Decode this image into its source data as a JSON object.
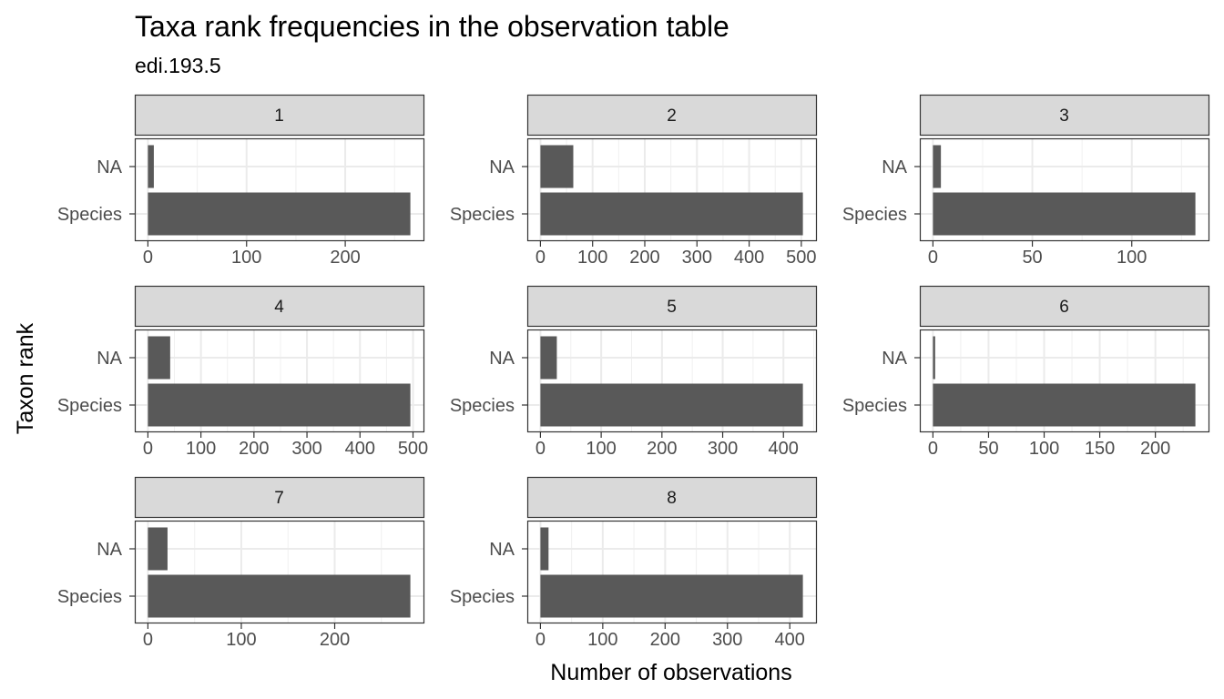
{
  "chart_data": {
    "type": "bar",
    "orientation": "horizontal",
    "title": "Taxa rank frequencies in the observation table",
    "subtitle": "edi.193.5",
    "xlabel": "Number of observations",
    "ylabel": "Taxon rank",
    "categories": [
      "Species",
      "NA"
    ],
    "bar_color": "#595959",
    "strip_color": "#d9d9d9",
    "grid": true,
    "facets": [
      {
        "label": "1",
        "values": [
          266,
          6
        ],
        "xlim": [
          -13.3,
          279.3
        ],
        "ticks": [
          0,
          100,
          200
        ],
        "tick_labels": [
          "0",
          "100",
          "200"
        ]
      },
      {
        "label": "2",
        "values": [
          503,
          63
        ],
        "xlim": [
          -25.15,
          528.15
        ],
        "ticks": [
          0,
          100,
          200,
          300,
          400,
          500
        ],
        "tick_labels": [
          "0",
          "100",
          "200",
          "300",
          "400",
          "500"
        ]
      },
      {
        "label": "3",
        "values": [
          132,
          4
        ],
        "xlim": [
          -6.6,
          138.6
        ],
        "ticks": [
          0,
          50,
          100
        ],
        "tick_labels": [
          "0",
          "50",
          "100"
        ]
      },
      {
        "label": "4",
        "values": [
          495,
          42
        ],
        "xlim": [
          -24.75,
          519.75
        ],
        "ticks": [
          0,
          100,
          200,
          300,
          400,
          500
        ],
        "tick_labels": [
          "0",
          "100",
          "200",
          "300",
          "400",
          "500"
        ]
      },
      {
        "label": "5",
        "values": [
          432,
          27
        ],
        "xlim": [
          -21.6,
          453.6
        ],
        "ticks": [
          0,
          100,
          200,
          300,
          400
        ],
        "tick_labels": [
          "0",
          "100",
          "200",
          "300",
          "400"
        ]
      },
      {
        "label": "6",
        "values": [
          236,
          2
        ],
        "xlim": [
          -11.8,
          247.8
        ],
        "ticks": [
          0,
          50,
          100,
          150,
          200
        ],
        "tick_labels": [
          "0",
          "50",
          "100",
          "150",
          "200"
        ]
      },
      {
        "label": "7",
        "values": [
          281,
          21
        ],
        "xlim": [
          -14.05,
          295.05
        ],
        "ticks": [
          0,
          100,
          200
        ],
        "tick_labels": [
          "0",
          "100",
          "200"
        ]
      },
      {
        "label": "8",
        "values": [
          421,
          13
        ],
        "xlim": [
          -21.05,
          442.05
        ],
        "ticks": [
          0,
          100,
          200,
          300,
          400
        ],
        "tick_labels": [
          "0",
          "100",
          "200",
          "300",
          "400"
        ]
      }
    ]
  }
}
